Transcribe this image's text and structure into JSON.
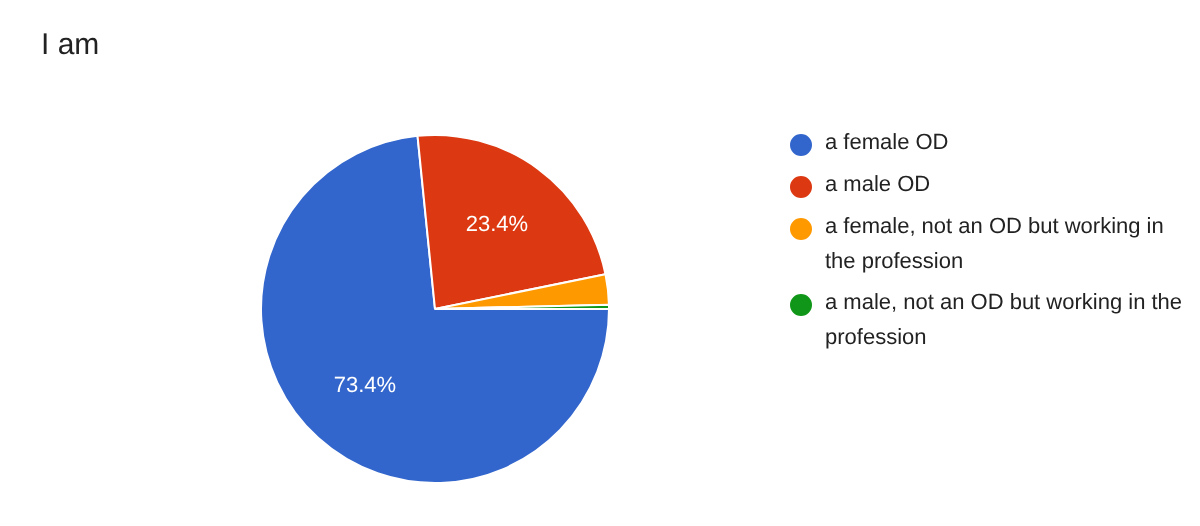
{
  "chart_data": {
    "type": "pie",
    "title": "I am",
    "categories": [
      "a female OD",
      "a male OD",
      "a female, not an OD but working in the profession",
      "a male, not an OD but working in the profession"
    ],
    "values": [
      73.4,
      23.4,
      2.8,
      0.4
    ],
    "colors": [
      "#3366cc",
      "#dc3912",
      "#ff9900",
      "#109618"
    ],
    "value_labels": [
      "73.4%",
      "23.4%",
      null,
      null
    ],
    "legend": "right"
  }
}
